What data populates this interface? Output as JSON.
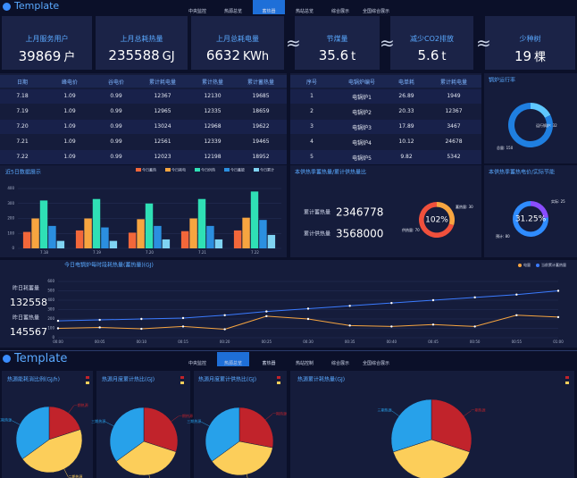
{
  "header": {
    "title": "Template",
    "nav": [
      "中央监控",
      "热源总览",
      "蓄热器",
      "热站总览",
      "综合展示",
      "全国综合展示"
    ],
    "active": 2
  },
  "header2": {
    "title": "Template",
    "nav": [
      "中央监控",
      "热源总览",
      "蓄热器",
      "热站控制",
      "综合展示",
      "全国综合展示"
    ],
    "active": 1
  },
  "approx_sign": "≈",
  "kpis": [
    {
      "label": "上月服务用户",
      "value": 39869,
      "unit": "户"
    },
    {
      "label": "上月总耗热量",
      "value": 235588,
      "unit": "GJ"
    },
    {
      "label": "上月总耗电量",
      "value": 6632,
      "unit": "KWh"
    },
    {
      "label": "节煤量",
      "value": 35.6,
      "unit": "t"
    },
    {
      "label": "减少CO2排放",
      "value": 5.6,
      "unit": "t"
    },
    {
      "label": "少种树",
      "value": 19,
      "unit": "棵"
    }
  ],
  "table": {
    "headers": [
      "日期",
      "峰电价",
      "谷电价",
      "累计耗电量",
      "累计热量",
      "累计蓄热量"
    ],
    "rows": [
      [
        "7.18",
        1.09,
        0.99,
        12367,
        12130,
        19685
      ],
      [
        "7.19",
        1.09,
        0.99,
        12965,
        12335,
        18659
      ],
      [
        "7.20",
        1.09,
        0.99,
        13024,
        12968,
        19622
      ],
      [
        "7.21",
        1.09,
        0.99,
        12561,
        12339,
        19465
      ],
      [
        "7.22",
        1.09,
        0.99,
        12023,
        12198,
        18952
      ]
    ]
  },
  "boilers": {
    "headers": [
      "序号",
      "电锅炉编号",
      "电单耗",
      "累计耗电量"
    ],
    "rows": [
      [
        1,
        "电锅炉1",
        26.89,
        1949
      ],
      [
        2,
        "电锅炉2",
        20.33,
        12367
      ],
      [
        3,
        "电锅炉3",
        17.89,
        3467
      ],
      [
        4,
        "电锅炉4",
        10.12,
        24678
      ],
      [
        5,
        "电锅炉5",
        9.82,
        5342
      ]
    ]
  },
  "chart_data": [
    {
      "type": "bar",
      "title": "近5日数据展示",
      "categories": [
        "7.18",
        "7.19",
        "7.20",
        "7.21",
        "7.22"
      ],
      "series": [
        {
          "name": "今日蓄热",
          "color": "#f2673a",
          "values": [
            110,
            120,
            105,
            115,
            120
          ]
        },
        {
          "name": "今日耗电",
          "color": "#f7a540",
          "values": [
            200,
            200,
            195,
            200,
            205
          ]
        },
        {
          "name": "今日供热",
          "color": "#2fe0b5",
          "values": [
            320,
            330,
            300,
            330,
            380
          ]
        },
        {
          "name": "今日蓄能",
          "color": "#2b8fe0",
          "values": [
            150,
            140,
            150,
            150,
            190
          ]
        },
        {
          "name": "今日累计",
          "color": "#7fd3f2",
          "values": [
            50,
            50,
            60,
            60,
            90
          ]
        }
      ],
      "ylim": [
        0,
        400
      ],
      "yticks": [
        0,
        100,
        200,
        300,
        400
      ]
    },
    {
      "type": "line",
      "title": "今日电锅炉每时段耗热量(蓄热量)(GJ)",
      "stats": [
        {
          "label": "昨日耗蓄量",
          "value": 132558
        },
        {
          "label": "昨日蓄热量",
          "value": 145567
        }
      ],
      "categories": [
        "00:00",
        "00:05",
        "00:10",
        "00:15",
        "00:20",
        "00:25",
        "00:30",
        "00:35",
        "00:40",
        "00:45",
        "00:50",
        "00:55",
        "01:00"
      ],
      "series": [
        {
          "name": "电量",
          "color": "#f7a540",
          "values": [
            100,
            110,
            95,
            120,
            90,
            230,
            200,
            130,
            120,
            140,
            120,
            240,
            220
          ]
        },
        {
          "name": "当前累计蓄热量",
          "color": "#3b7bff",
          "values": [
            180,
            190,
            200,
            210,
            240,
            280,
            310,
            340,
            370,
            400,
            430,
            460,
            500
          ]
        }
      ],
      "ylim": [
        0,
        600
      ],
      "yticks": [
        0,
        100,
        200,
        300,
        400,
        500,
        600
      ]
    },
    {
      "type": "donut",
      "title": "锅炉运行率",
      "categories": [
        "运行锅炉: 32",
        "总量: 150"
      ],
      "values": [
        32,
        150
      ],
      "colors": [
        "#5fc8ff",
        "#1f7fe0"
      ]
    },
    {
      "type": "donut",
      "title": "本供热季蓄热量/累计供热量比",
      "center_label": "102%",
      "stats": [
        {
          "label": "累计蓄热量",
          "value": 2346778
        },
        {
          "label": "累计供热量",
          "value": 3568000
        }
      ],
      "categories": [
        "蓄热量: 30",
        "供热量: 70"
      ],
      "values": [
        30,
        70
      ],
      "colors": [
        "#f7a540",
        "#f0503c"
      ]
    },
    {
      "type": "donut",
      "title": "本供热季蓄热电价/实际节能",
      "center_label": "31.25%",
      "categories": [
        "实际: 25",
        "预计: 80"
      ],
      "values": [
        25,
        80
      ],
      "colors": [
        "#8a4dff",
        "#2f8cff"
      ]
    },
    {
      "type": "pie",
      "title": "热源能耗消比例(GJ/h)",
      "categories": [
        "一期热源",
        "二期热源",
        "三期热源"
      ],
      "values": [
        20,
        45,
        35
      ],
      "colors": [
        "#c1232b",
        "#fcce5a",
        "#27a1ea"
      ]
    },
    {
      "type": "pie",
      "title": "热源月度累计热比(GJ)",
      "categories": [
        "一期热源",
        "二期热源",
        "三期热源"
      ],
      "values": [
        30,
        35,
        35
      ],
      "colors": [
        "#c1232b",
        "#fcce5a",
        "#27a1ea"
      ]
    },
    {
      "type": "pie",
      "title": "热源月度累计供热比(GJ)",
      "categories": [
        "一期热源",
        "二期热源",
        "三期热源"
      ],
      "values": [
        28,
        37,
        35
      ],
      "colors": [
        "#c1232b",
        "#fcce5a",
        "#27a1ea"
      ]
    },
    {
      "type": "pie",
      "title": "热源累计耗热量(GJ)",
      "categories": [
        "一期热源",
        "二期热源",
        "三期热源"
      ],
      "values": [
        30,
        40,
        30
      ],
      "colors": [
        "#c1232b",
        "#fcce5a",
        "#27a1ea"
      ]
    }
  ]
}
